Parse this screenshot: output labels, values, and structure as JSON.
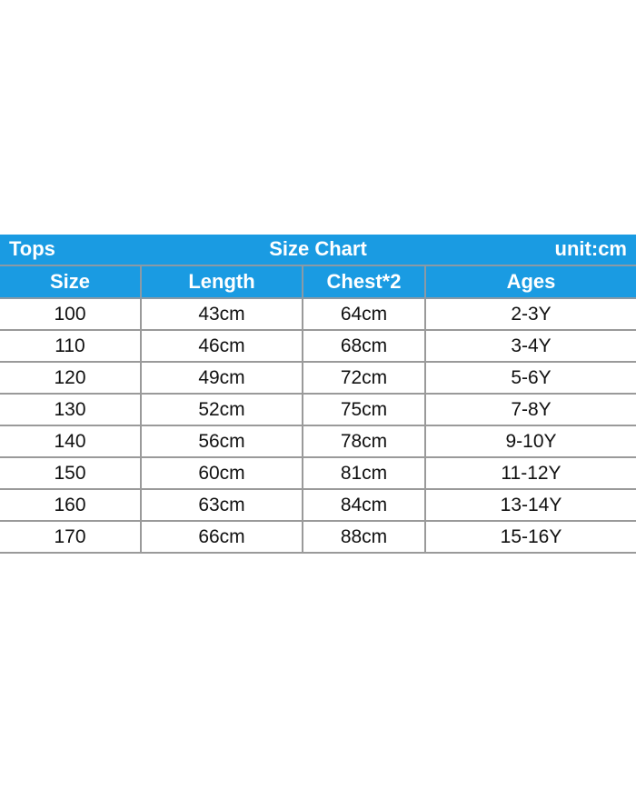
{
  "title_bar": {
    "left": "Tops",
    "center": "Size Chart",
    "right": "unit:cm"
  },
  "colors": {
    "header_bg": "#1a9be2",
    "header_text": "#ffffff",
    "grid": "#9a9a9a"
  },
  "table": {
    "columns": [
      "Size",
      "Length",
      "Chest*2",
      "Ages"
    ],
    "rows": [
      [
        "100",
        "43cm",
        "64cm",
        "2-3Y"
      ],
      [
        "110",
        "46cm",
        "68cm",
        "3-4Y"
      ],
      [
        "120",
        "49cm",
        "72cm",
        "5-6Y"
      ],
      [
        "130",
        "52cm",
        "75cm",
        "7-8Y"
      ],
      [
        "140",
        "56cm",
        "78cm",
        "9-10Y"
      ],
      [
        "150",
        "60cm",
        "81cm",
        "11-12Y"
      ],
      [
        "160",
        "63cm",
        "84cm",
        "13-14Y"
      ],
      [
        "170",
        "66cm",
        "88cm",
        "15-16Y"
      ]
    ]
  }
}
